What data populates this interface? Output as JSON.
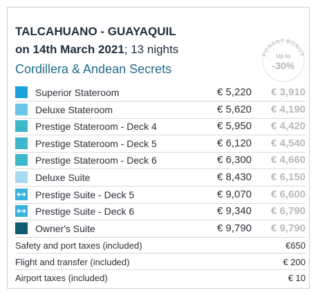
{
  "header": {
    "route": "TALCAHUANO - GUAYAQUIL",
    "date": "on 14th March 2021",
    "nights": "; 13 nights",
    "cruise": "Cordillera & Andean Secrets"
  },
  "badge": {
    "arc": "PONANT BONUS",
    "prefix": "Up to",
    "discount": "-30%"
  },
  "cabins": [
    {
      "name": "Superior Stateroom",
      "color": "#1aa3d9",
      "price": "€ 5,220",
      "bonus_price": "€ 3,910"
    },
    {
      "name": "Deluxe Stateroom",
      "color": "#6cc6ea",
      "price": "€ 5,620",
      "bonus_price": "€ 4,190"
    },
    {
      "name": "Prestige Stateroom - Deck 4",
      "color": "#3db7c9",
      "price": "€ 5,950",
      "bonus_price": "€ 4,420"
    },
    {
      "name": "Prestige Stateroom - Deck 5",
      "color": "#3db7c9",
      "price": "€ 6,120",
      "bonus_price": "€ 4,540"
    },
    {
      "name": "Prestige Stateroom - Deck 6",
      "color": "#3db7c9",
      "price": "€ 6,300",
      "bonus_price": "€ 4,660"
    },
    {
      "name": "Deluxe Suite",
      "color": "#a8d9f1",
      "price": "€ 8,430",
      "bonus_price": "€ 6,150"
    },
    {
      "name": "Prestige Suite - Deck 5",
      "color": "#3ab2dc",
      "price": "€ 9,070",
      "bonus_price": "€ 6,600"
    },
    {
      "name": "Prestige Suite - Deck 6",
      "color": "#3ab2dc",
      "price": "€ 9,340",
      "bonus_price": "€ 6,790"
    },
    {
      "name": "Owner's Suite",
      "color": "#0f5b6f",
      "price": "€ 9,790",
      "bonus_price": "€ 9,790"
    }
  ],
  "extras": [
    {
      "label": "Safety and port taxes (included)",
      "value": "€650"
    },
    {
      "label": "Flight and transfer (included)",
      "value": "€ 200"
    },
    {
      "label": "Airport taxes (included)",
      "value": "€ 10"
    }
  ]
}
